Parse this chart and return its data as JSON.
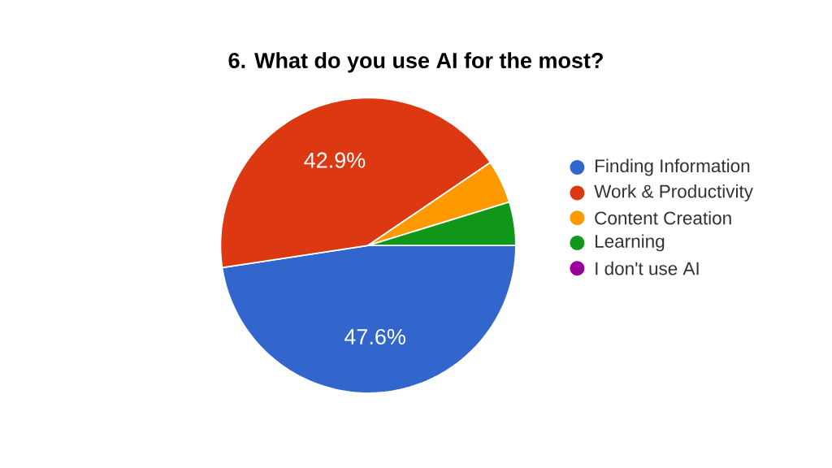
{
  "chart_data": {
    "type": "pie",
    "title": "6. What do you use AI for the most?",
    "categories": [
      "Finding Information",
      "Work & Productivity",
      "Content Creation",
      "Learning",
      "I don't use AI"
    ],
    "values": [
      47.6,
      42.9,
      4.75,
      4.75,
      0
    ],
    "colors": [
      "#3366cc",
      "#dc3912",
      "#ff9900",
      "#109618",
      "#990099"
    ],
    "value_labels": [
      "47.6%",
      "42.9%",
      null,
      null,
      null
    ],
    "legend": "right"
  }
}
